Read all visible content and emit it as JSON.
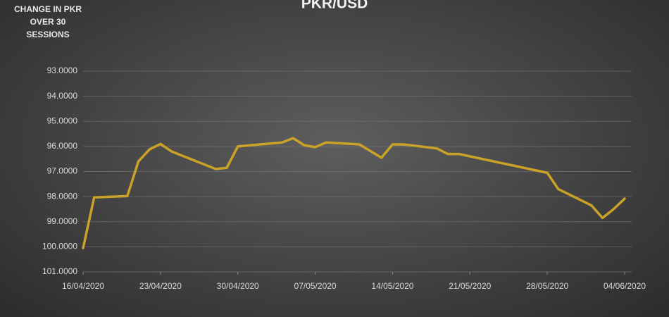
{
  "chart_data": {
    "type": "line",
    "title": "PKR/USD",
    "annotation": "CHANGE IN PKR OVER 30 SESSIONS",
    "x": [
      "2020-04-16",
      "2020-04-17",
      "2020-04-20",
      "2020-04-21",
      "2020-04-22",
      "2020-04-23",
      "2020-04-24",
      "2020-04-28",
      "2020-04-29",
      "2020-04-30",
      "2020-05-04",
      "2020-05-05",
      "2020-05-06",
      "2020-05-07",
      "2020-05-08",
      "2020-05-11",
      "2020-05-13",
      "2020-05-14",
      "2020-05-15",
      "2020-05-18",
      "2020-05-19",
      "2020-05-20",
      "2020-05-28",
      "2020-05-29",
      "2020-06-01",
      "2020-06-02",
      "2020-06-03",
      "2020-06-04"
    ],
    "series": [
      {
        "name": "PKR/USD",
        "color": "#c9a227",
        "values": [
          100.05,
          98.03,
          97.98,
          96.6,
          96.12,
          95.9,
          96.2,
          96.9,
          96.85,
          96.0,
          95.84,
          95.67,
          95.95,
          96.03,
          95.84,
          95.92,
          96.45,
          95.92,
          95.92,
          96.08,
          96.3,
          96.3,
          97.05,
          97.7,
          98.35,
          98.85,
          98.5,
          98.08
        ]
      }
    ],
    "xlim": [
      "2020-04-16",
      "2020-06-04"
    ],
    "xticks": [
      {
        "value": "2020-04-16",
        "label": "16/04/2020"
      },
      {
        "value": "2020-04-23",
        "label": "23/04/2020"
      },
      {
        "value": "2020-04-30",
        "label": "30/04/2020"
      },
      {
        "value": "2020-05-07",
        "label": "07/05/2020"
      },
      {
        "value": "2020-05-14",
        "label": "14/05/2020"
      },
      {
        "value": "2020-05-21",
        "label": "21/05/2020"
      },
      {
        "value": "2020-05-28",
        "label": "28/05/2020"
      },
      {
        "value": "2020-06-04",
        "label": "04/06/2020"
      }
    ],
    "ylim": [
      93,
      101
    ],
    "y_inverted": true,
    "yticks": [
      {
        "value": 93,
        "label": "93.0000"
      },
      {
        "value": 94,
        "label": "94.0000"
      },
      {
        "value": 95,
        "label": "95.0000"
      },
      {
        "value": 96,
        "label": "96.0000"
      },
      {
        "value": 97,
        "label": "97.0000"
      },
      {
        "value": 98,
        "label": "98.0000"
      },
      {
        "value": 99,
        "label": "99.0000"
      },
      {
        "value": 100,
        "label": "100.0000"
      },
      {
        "value": 101,
        "label": "101.0000"
      }
    ],
    "grid": true
  }
}
